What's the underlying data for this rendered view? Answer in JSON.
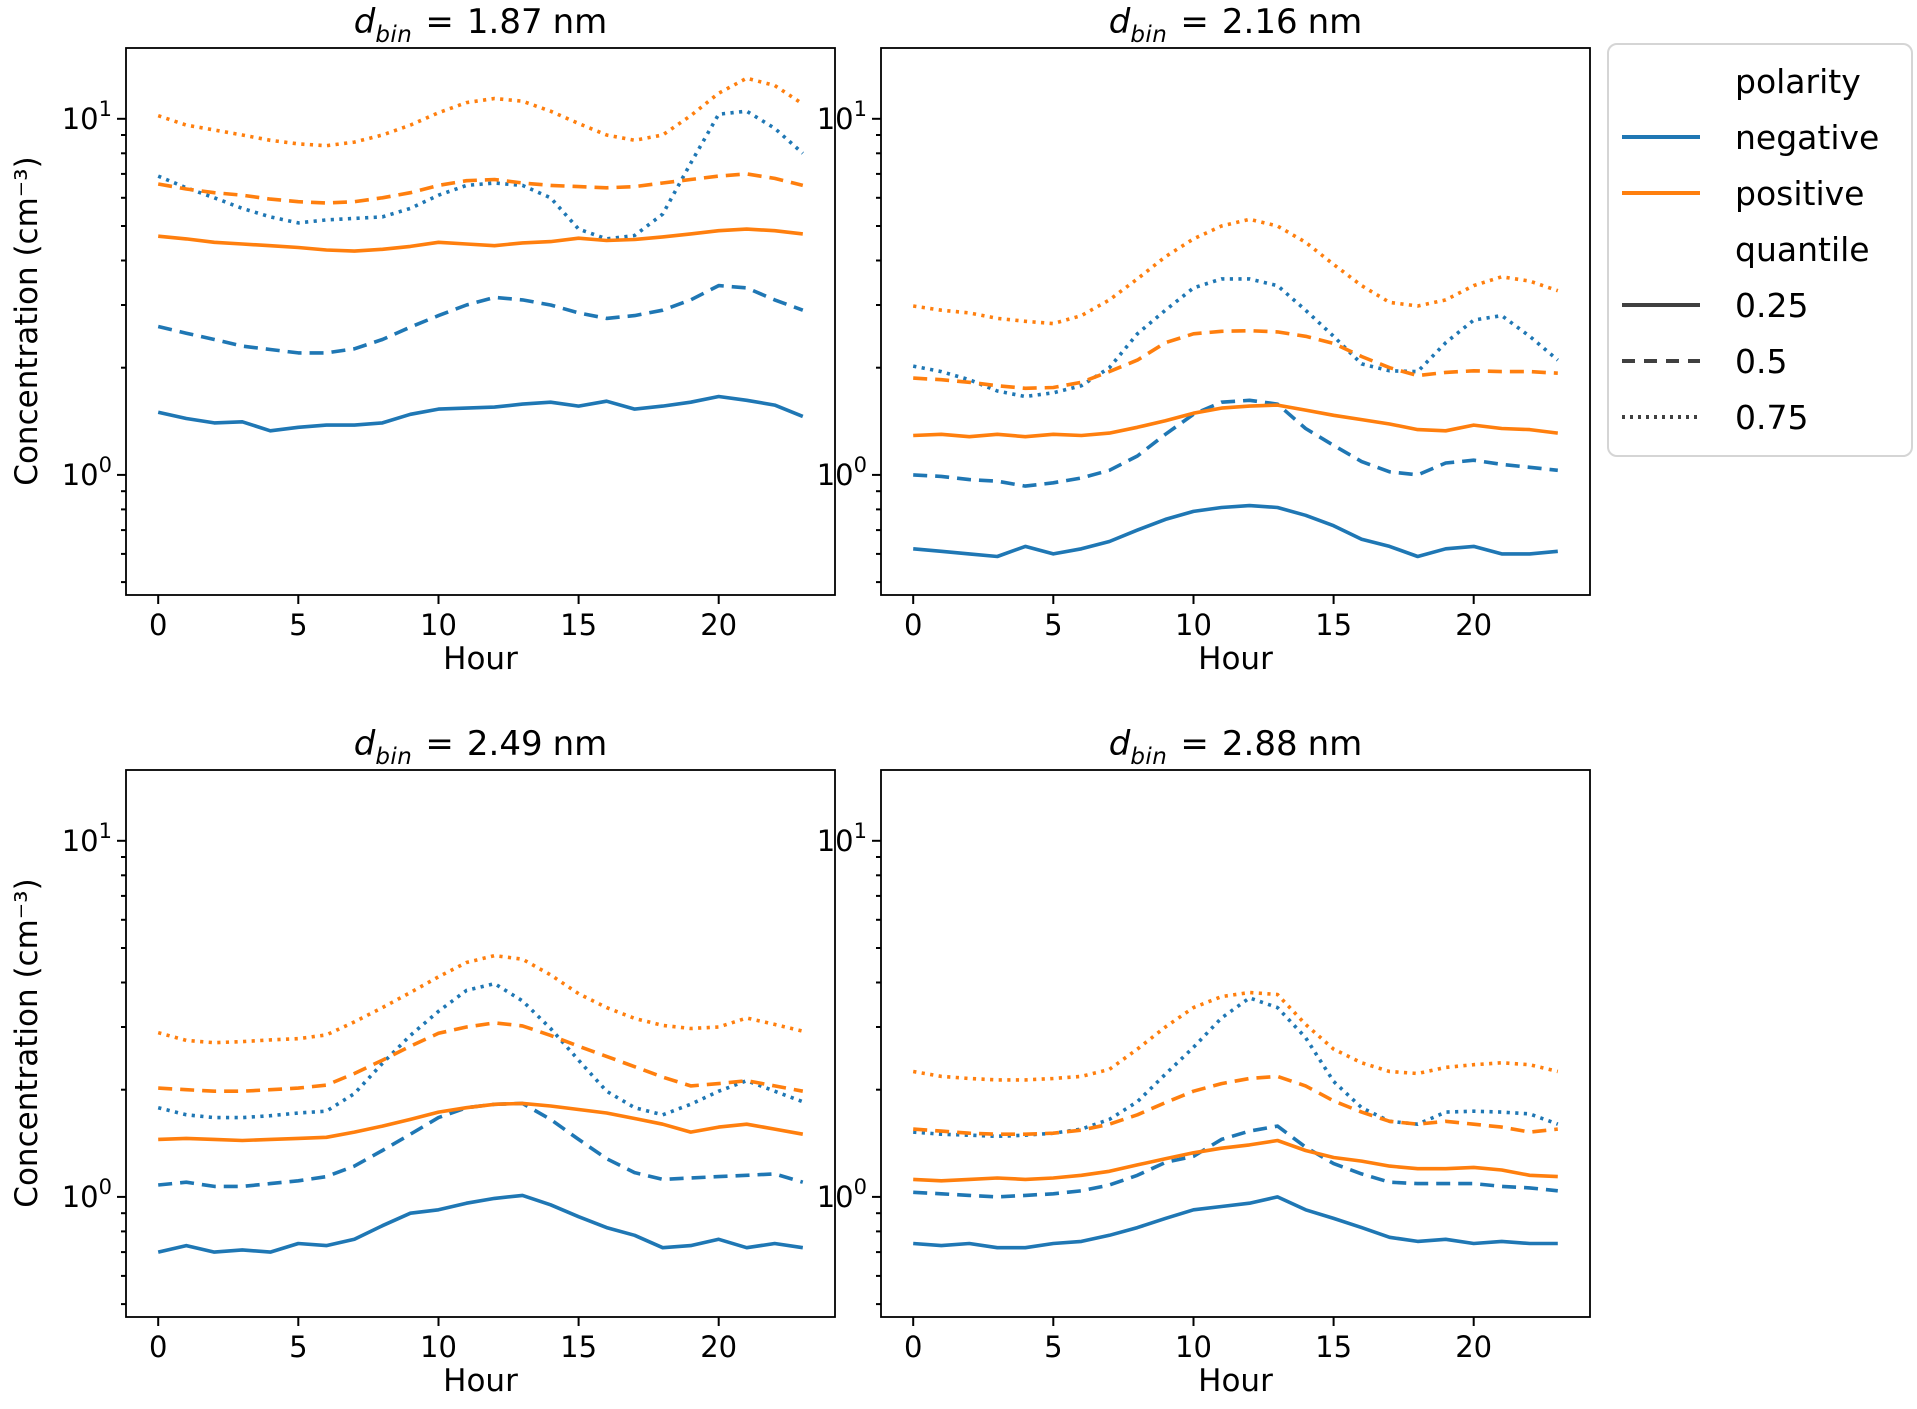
{
  "figure": {
    "background": "#ffffff",
    "ylabel": "Concentration (cm⁻³)",
    "xlabel": "Hour"
  },
  "colors": {
    "negative": "#1f77b4",
    "positive": "#ff7f0e",
    "quantile_handle": "#404040",
    "spine": "#000000"
  },
  "legend": {
    "title_polarity": "polarity",
    "items_polarity": [
      {
        "label": "negative",
        "color_key": "negative",
        "style": "solid"
      },
      {
        "label": "positive",
        "color_key": "positive",
        "style": "solid"
      }
    ],
    "title_quantile": "quantile",
    "items_quantile": [
      {
        "label": "0.25",
        "style": "solid"
      },
      {
        "label": "0.5",
        "style": "dashed"
      },
      {
        "label": "0.75",
        "style": "dotted"
      }
    ]
  },
  "chart_data": [
    {
      "type": "line",
      "title_parts": {
        "var": "d",
        "sub": "bin",
        "equals": "=",
        "value": "1.87",
        "unit": "nm"
      },
      "xlabel": "Hour",
      "ylabel": "Concentration (cm⁻³)",
      "yscale": "log",
      "xlim": [
        -1.15,
        24.15
      ],
      "ylim": [
        0.46,
        15.8
      ],
      "xticks": [
        0,
        5,
        10,
        15,
        20
      ],
      "yticks_major": [
        {
          "value": 10,
          "base": "10",
          "exp": "1"
        },
        {
          "value": 1,
          "base": "10",
          "exp": "0"
        }
      ],
      "yticks_minor": [
        0.5,
        0.6,
        0.7,
        0.8,
        0.9,
        2,
        3,
        4,
        5,
        6,
        7,
        8,
        9
      ],
      "x": [
        0,
        1,
        2,
        3,
        4,
        5,
        6,
        7,
        8,
        9,
        10,
        11,
        12,
        13,
        14,
        15,
        16,
        17,
        18,
        19,
        20,
        21,
        22,
        23
      ],
      "series": [
        {
          "polarity": "negative",
          "quantile": "0.25",
          "style": "solid",
          "values": [
            1.5,
            1.44,
            1.4,
            1.41,
            1.33,
            1.36,
            1.38,
            1.38,
            1.4,
            1.48,
            1.53,
            1.54,
            1.55,
            1.58,
            1.6,
            1.56,
            1.61,
            1.53,
            1.56,
            1.6,
            1.66,
            1.62,
            1.57,
            1.46
          ]
        },
        {
          "polarity": "negative",
          "quantile": "0.5",
          "style": "dashed",
          "values": [
            2.61,
            2.5,
            2.4,
            2.3,
            2.25,
            2.2,
            2.2,
            2.26,
            2.4,
            2.6,
            2.8,
            3.0,
            3.15,
            3.1,
            3.0,
            2.85,
            2.75,
            2.8,
            2.9,
            3.1,
            3.4,
            3.35,
            3.1,
            2.9
          ]
        },
        {
          "polarity": "negative",
          "quantile": "0.75",
          "style": "dotted",
          "values": [
            6.9,
            6.4,
            6.0,
            5.6,
            5.3,
            5.1,
            5.2,
            5.25,
            5.3,
            5.6,
            6.1,
            6.5,
            6.6,
            6.5,
            6.0,
            4.9,
            4.6,
            4.7,
            5.4,
            7.5,
            10.3,
            10.5,
            9.4,
            8.0
          ]
        },
        {
          "polarity": "positive",
          "quantile": "0.25",
          "style": "solid",
          "values": [
            4.68,
            4.6,
            4.5,
            4.45,
            4.4,
            4.35,
            4.28,
            4.25,
            4.3,
            4.38,
            4.5,
            4.45,
            4.4,
            4.48,
            4.52,
            4.62,
            4.55,
            4.58,
            4.66,
            4.75,
            4.85,
            4.9,
            4.85,
            4.75
          ]
        },
        {
          "polarity": "positive",
          "quantile": "0.5",
          "style": "dashed",
          "values": [
            6.56,
            6.35,
            6.2,
            6.1,
            5.95,
            5.85,
            5.8,
            5.85,
            6.0,
            6.2,
            6.5,
            6.7,
            6.75,
            6.6,
            6.5,
            6.45,
            6.4,
            6.45,
            6.6,
            6.75,
            6.9,
            7.0,
            6.8,
            6.5
          ]
        },
        {
          "polarity": "positive",
          "quantile": "0.75",
          "style": "dotted",
          "values": [
            10.2,
            9.6,
            9.3,
            9.0,
            8.7,
            8.5,
            8.4,
            8.6,
            9.0,
            9.6,
            10.4,
            11.1,
            11.4,
            11.2,
            10.5,
            9.7,
            9.0,
            8.7,
            9.0,
            10.2,
            11.8,
            13.0,
            12.4,
            11.0
          ]
        }
      ]
    },
    {
      "type": "line",
      "title_parts": {
        "var": "d",
        "sub": "bin",
        "equals": "=",
        "value": "2.16",
        "unit": "nm"
      },
      "xlabel": "Hour",
      "ylabel": "Concentration (cm⁻³)",
      "yscale": "log",
      "xlim": [
        -1.15,
        24.15
      ],
      "ylim": [
        0.46,
        15.8
      ],
      "xticks": [
        0,
        5,
        10,
        15,
        20
      ],
      "yticks_major": [
        {
          "value": 10,
          "base": "10",
          "exp": "1"
        },
        {
          "value": 1,
          "base": "10",
          "exp": "0"
        }
      ],
      "yticks_minor": [
        0.5,
        0.6,
        0.7,
        0.8,
        0.9,
        2,
        3,
        4,
        5,
        6,
        7,
        8,
        9
      ],
      "x": [
        0,
        1,
        2,
        3,
        4,
        5,
        6,
        7,
        8,
        9,
        10,
        11,
        12,
        13,
        14,
        15,
        16,
        17,
        18,
        19,
        20,
        21,
        22,
        23
      ],
      "series": [
        {
          "polarity": "negative",
          "quantile": "0.25",
          "style": "solid",
          "values": [
            0.62,
            0.61,
            0.6,
            0.59,
            0.63,
            0.6,
            0.62,
            0.65,
            0.7,
            0.75,
            0.79,
            0.81,
            0.82,
            0.81,
            0.77,
            0.72,
            0.66,
            0.63,
            0.59,
            0.62,
            0.63,
            0.6,
            0.6,
            0.61
          ]
        },
        {
          "polarity": "negative",
          "quantile": "0.5",
          "style": "dashed",
          "values": [
            1.0,
            0.99,
            0.97,
            0.96,
            0.93,
            0.95,
            0.98,
            1.03,
            1.13,
            1.3,
            1.48,
            1.6,
            1.62,
            1.58,
            1.35,
            1.21,
            1.09,
            1.02,
            1.0,
            1.08,
            1.1,
            1.07,
            1.05,
            1.03
          ]
        },
        {
          "polarity": "negative",
          "quantile": "0.75",
          "style": "dotted",
          "values": [
            2.02,
            1.95,
            1.85,
            1.72,
            1.66,
            1.7,
            1.78,
            2.0,
            2.49,
            2.9,
            3.35,
            3.55,
            3.55,
            3.4,
            2.9,
            2.45,
            2.05,
            1.96,
            1.95,
            2.35,
            2.72,
            2.8,
            2.45,
            2.1
          ]
        },
        {
          "polarity": "positive",
          "quantile": "0.25",
          "style": "solid",
          "values": [
            1.29,
            1.3,
            1.28,
            1.3,
            1.28,
            1.3,
            1.29,
            1.31,
            1.36,
            1.42,
            1.49,
            1.54,
            1.56,
            1.57,
            1.52,
            1.47,
            1.43,
            1.39,
            1.34,
            1.33,
            1.38,
            1.35,
            1.34,
            1.31
          ]
        },
        {
          "polarity": "positive",
          "quantile": "0.5",
          "style": "dashed",
          "values": [
            1.87,
            1.85,
            1.82,
            1.78,
            1.75,
            1.76,
            1.82,
            1.95,
            2.1,
            2.35,
            2.49,
            2.53,
            2.54,
            2.52,
            2.45,
            2.34,
            2.15,
            2.0,
            1.9,
            1.94,
            1.96,
            1.95,
            1.95,
            1.93
          ]
        },
        {
          "polarity": "positive",
          "quantile": "0.75",
          "style": "dotted",
          "values": [
            2.98,
            2.9,
            2.85,
            2.75,
            2.7,
            2.66,
            2.8,
            3.1,
            3.55,
            4.1,
            4.6,
            5.0,
            5.22,
            5.0,
            4.5,
            3.9,
            3.4,
            3.05,
            2.98,
            3.1,
            3.4,
            3.6,
            3.5,
            3.29
          ]
        }
      ]
    },
    {
      "type": "line",
      "title_parts": {
        "var": "d",
        "sub": "bin",
        "equals": "=",
        "value": "2.49",
        "unit": "nm"
      },
      "xlabel": "Hour",
      "ylabel": "Concentration (cm⁻³)",
      "yscale": "log",
      "xlim": [
        -1.15,
        24.15
      ],
      "ylim": [
        0.46,
        15.8
      ],
      "xticks": [
        0,
        5,
        10,
        15,
        20
      ],
      "yticks_major": [
        {
          "value": 10,
          "base": "10",
          "exp": "1"
        },
        {
          "value": 1,
          "base": "10",
          "exp": "0"
        }
      ],
      "yticks_minor": [
        0.5,
        0.6,
        0.7,
        0.8,
        0.9,
        2,
        3,
        4,
        5,
        6,
        7,
        8,
        9
      ],
      "x": [
        0,
        1,
        2,
        3,
        4,
        5,
        6,
        7,
        8,
        9,
        10,
        11,
        12,
        13,
        14,
        15,
        16,
        17,
        18,
        19,
        20,
        21,
        22,
        23
      ],
      "series": [
        {
          "polarity": "negative",
          "quantile": "0.25",
          "style": "solid",
          "values": [
            0.7,
            0.73,
            0.7,
            0.71,
            0.7,
            0.74,
            0.73,
            0.76,
            0.83,
            0.9,
            0.92,
            0.96,
            0.99,
            1.01,
            0.95,
            0.88,
            0.82,
            0.78,
            0.72,
            0.73,
            0.76,
            0.72,
            0.74,
            0.72
          ]
        },
        {
          "polarity": "negative",
          "quantile": "0.5",
          "style": "dashed",
          "values": [
            1.08,
            1.1,
            1.07,
            1.07,
            1.09,
            1.11,
            1.14,
            1.22,
            1.35,
            1.5,
            1.67,
            1.78,
            1.82,
            1.83,
            1.65,
            1.45,
            1.28,
            1.17,
            1.12,
            1.13,
            1.14,
            1.15,
            1.16,
            1.1
          ]
        },
        {
          "polarity": "negative",
          "quantile": "0.75",
          "style": "dotted",
          "values": [
            1.78,
            1.7,
            1.67,
            1.67,
            1.69,
            1.72,
            1.74,
            1.95,
            2.37,
            2.84,
            3.32,
            3.8,
            3.97,
            3.55,
            2.97,
            2.42,
            1.98,
            1.78,
            1.7,
            1.82,
            1.98,
            2.12,
            1.98,
            1.85
          ]
        },
        {
          "polarity": "positive",
          "quantile": "0.25",
          "style": "solid",
          "values": [
            1.45,
            1.46,
            1.45,
            1.44,
            1.45,
            1.46,
            1.47,
            1.52,
            1.58,
            1.65,
            1.73,
            1.78,
            1.82,
            1.83,
            1.8,
            1.76,
            1.72,
            1.66,
            1.6,
            1.52,
            1.57,
            1.6,
            1.55,
            1.5
          ]
        },
        {
          "polarity": "positive",
          "quantile": "0.5",
          "style": "dashed",
          "values": [
            2.02,
            2.0,
            1.98,
            1.98,
            2.0,
            2.02,
            2.06,
            2.22,
            2.42,
            2.65,
            2.88,
            3.0,
            3.08,
            3.02,
            2.84,
            2.65,
            2.48,
            2.32,
            2.17,
            2.05,
            2.08,
            2.12,
            2.05,
            1.98
          ]
        },
        {
          "polarity": "positive",
          "quantile": "0.75",
          "style": "dotted",
          "values": [
            2.89,
            2.75,
            2.71,
            2.73,
            2.76,
            2.78,
            2.85,
            3.1,
            3.4,
            3.75,
            4.15,
            4.55,
            4.76,
            4.65,
            4.2,
            3.72,
            3.4,
            3.17,
            3.03,
            2.97,
            3.0,
            3.18,
            3.05,
            2.92
          ]
        }
      ]
    },
    {
      "type": "line",
      "title_parts": {
        "var": "d",
        "sub": "bin",
        "equals": "=",
        "value": "2.88",
        "unit": "nm"
      },
      "xlabel": "Hour",
      "ylabel": "Concentration (cm⁻³)",
      "yscale": "log",
      "xlim": [
        -1.15,
        24.15
      ],
      "ylim": [
        0.46,
        15.8
      ],
      "xticks": [
        0,
        5,
        10,
        15,
        20
      ],
      "yticks_major": [
        {
          "value": 10,
          "base": "10",
          "exp": "1"
        },
        {
          "value": 1,
          "base": "10",
          "exp": "0"
        }
      ],
      "yticks_minor": [
        0.5,
        0.6,
        0.7,
        0.8,
        0.9,
        2,
        3,
        4,
        5,
        6,
        7,
        8,
        9
      ],
      "x": [
        0,
        1,
        2,
        3,
        4,
        5,
        6,
        7,
        8,
        9,
        10,
        11,
        12,
        13,
        14,
        15,
        16,
        17,
        18,
        19,
        20,
        21,
        22,
        23
      ],
      "series": [
        {
          "polarity": "negative",
          "quantile": "0.25",
          "style": "solid",
          "values": [
            0.74,
            0.73,
            0.74,
            0.72,
            0.72,
            0.74,
            0.75,
            0.78,
            0.82,
            0.87,
            0.92,
            0.94,
            0.96,
            1.0,
            0.92,
            0.87,
            0.82,
            0.77,
            0.75,
            0.76,
            0.74,
            0.75,
            0.74,
            0.74
          ]
        },
        {
          "polarity": "negative",
          "quantile": "0.5",
          "style": "dashed",
          "values": [
            1.03,
            1.02,
            1.01,
            1.0,
            1.01,
            1.02,
            1.04,
            1.08,
            1.15,
            1.25,
            1.3,
            1.45,
            1.53,
            1.58,
            1.38,
            1.24,
            1.16,
            1.1,
            1.09,
            1.09,
            1.09,
            1.07,
            1.06,
            1.04
          ]
        },
        {
          "polarity": "negative",
          "quantile": "0.75",
          "style": "dotted",
          "values": [
            1.52,
            1.5,
            1.49,
            1.48,
            1.49,
            1.51,
            1.55,
            1.65,
            1.85,
            2.21,
            2.63,
            3.18,
            3.62,
            3.4,
            2.8,
            2.11,
            1.78,
            1.63,
            1.6,
            1.73,
            1.74,
            1.73,
            1.71,
            1.6
          ]
        },
        {
          "polarity": "positive",
          "quantile": "0.25",
          "style": "solid",
          "values": [
            1.12,
            1.11,
            1.12,
            1.13,
            1.12,
            1.13,
            1.15,
            1.18,
            1.23,
            1.28,
            1.33,
            1.37,
            1.4,
            1.44,
            1.35,
            1.29,
            1.26,
            1.22,
            1.2,
            1.2,
            1.21,
            1.19,
            1.15,
            1.14
          ]
        },
        {
          "polarity": "positive",
          "quantile": "0.5",
          "style": "dashed",
          "values": [
            1.55,
            1.53,
            1.51,
            1.5,
            1.5,
            1.51,
            1.54,
            1.6,
            1.7,
            1.84,
            1.98,
            2.08,
            2.15,
            2.18,
            2.05,
            1.86,
            1.73,
            1.63,
            1.6,
            1.63,
            1.6,
            1.57,
            1.52,
            1.55
          ]
        },
        {
          "polarity": "positive",
          "quantile": "0.75",
          "style": "dotted",
          "values": [
            2.25,
            2.18,
            2.15,
            2.13,
            2.13,
            2.15,
            2.18,
            2.28,
            2.6,
            3.0,
            3.4,
            3.65,
            3.75,
            3.7,
            3.05,
            2.6,
            2.38,
            2.25,
            2.22,
            2.31,
            2.35,
            2.38,
            2.35,
            2.25
          ]
        }
      ]
    }
  ]
}
